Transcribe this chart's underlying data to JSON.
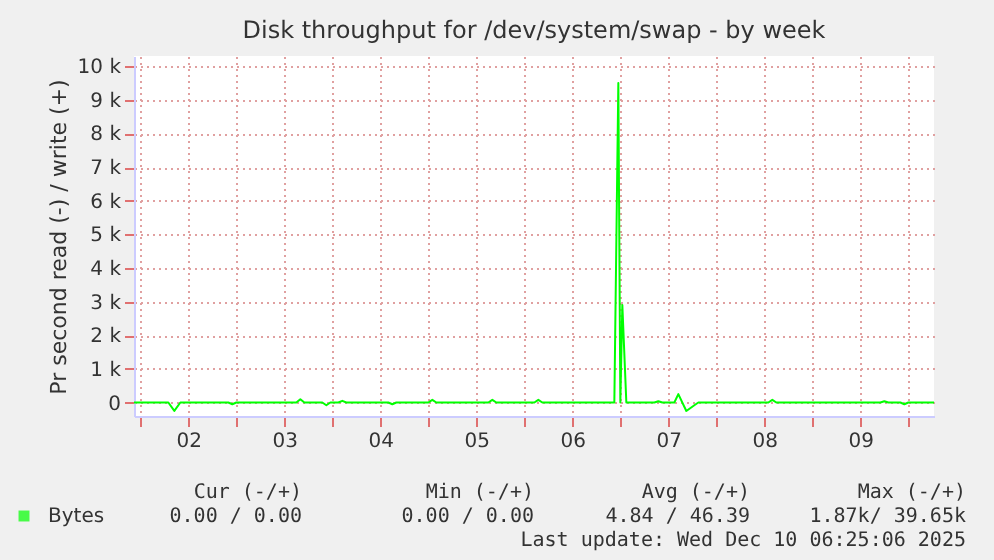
{
  "chart_data": {
    "type": "line",
    "title": "Disk throughput for /dev/system/swap - by week",
    "ylabel": "Pr second read (-) / write (+)",
    "x": [
      "2025-12-01T22:25",
      "2025-12-02T07:00",
      "2025-12-02T08:30",
      "2025-12-02T10:00",
      "2025-12-02T22:00",
      "2025-12-02T23:00",
      "2025-12-03T00:00",
      "2025-12-03T15:00",
      "2025-12-03T16:00",
      "2025-12-03T17:00",
      "2025-12-03T21:30",
      "2025-12-03T22:30",
      "2025-12-03T23:30",
      "2025-12-04T01:30",
      "2025-12-04T02:30",
      "2025-12-04T03:30",
      "2025-12-04T14:00",
      "2025-12-04T15:00",
      "2025-12-04T16:00",
      "2025-12-05T00:00",
      "2025-12-05T01:00",
      "2025-12-05T02:00",
      "2025-12-05T15:00",
      "2025-12-05T16:00",
      "2025-12-05T17:00",
      "2025-12-06T02:30",
      "2025-12-06T03:30",
      "2025-12-06T04:30",
      "2025-12-06T22:30",
      "2025-12-06T23:30",
      "2025-12-07T00:00",
      "2025-12-07T00:30",
      "2025-12-07T01:30",
      "2025-12-07T08:30",
      "2025-12-07T09:30",
      "2025-12-07T10:30",
      "2025-12-07T13:30",
      "2025-12-07T14:30",
      "2025-12-07T16:30",
      "2025-12-07T18:30",
      "2025-12-07T19:30",
      "2025-12-08T13:00",
      "2025-12-08T14:00",
      "2025-12-08T15:00",
      "2025-12-09T17:00",
      "2025-12-09T18:00",
      "2025-12-09T19:00",
      "2025-12-09T22:00",
      "2025-12-09T23:00",
      "2025-12-10T00:00",
      "2025-12-10T06:25"
    ],
    "series": [
      {
        "name": "Bytes",
        "color": "#00ff00",
        "values": [
          0,
          0,
          -250,
          0,
          0,
          -50,
          0,
          0,
          100,
          0,
          0,
          -80,
          0,
          0,
          50,
          0,
          0,
          -50,
          0,
          0,
          80,
          0,
          0,
          80,
          0,
          0,
          80,
          0,
          0,
          9500,
          0,
          2900,
          0,
          0,
          40,
          0,
          0,
          250,
          -250,
          -80,
          0,
          0,
          80,
          0,
          0,
          40,
          0,
          0,
          -50,
          0,
          0
        ]
      }
    ],
    "xlim": [
      "2025-12-01T22:25",
      "2025-12-10T06:25"
    ],
    "xticks": [
      {
        "value": "2025-12-02T00:00",
        "label": null
      },
      {
        "value": "2025-12-02T12:00",
        "label": "02"
      },
      {
        "value": "2025-12-03T00:00",
        "label": null
      },
      {
        "value": "2025-12-03T12:00",
        "label": "03"
      },
      {
        "value": "2025-12-04T00:00",
        "label": null
      },
      {
        "value": "2025-12-04T12:00",
        "label": "04"
      },
      {
        "value": "2025-12-05T00:00",
        "label": null
      },
      {
        "value": "2025-12-05T12:00",
        "label": "05"
      },
      {
        "value": "2025-12-06T00:00",
        "label": null
      },
      {
        "value": "2025-12-06T12:00",
        "label": "06"
      },
      {
        "value": "2025-12-07T00:00",
        "label": null
      },
      {
        "value": "2025-12-07T12:00",
        "label": "07"
      },
      {
        "value": "2025-12-08T00:00",
        "label": null
      },
      {
        "value": "2025-12-08T12:00",
        "label": "08"
      },
      {
        "value": "2025-12-09T00:00",
        "label": null
      },
      {
        "value": "2025-12-09T12:00",
        "label": "09"
      },
      {
        "value": "2025-12-10T00:00",
        "label": null
      }
    ],
    "ylim": [
      -400,
      10300
    ],
    "yticks": [
      0,
      {
        "value": 1000,
        "label": "1 k"
      },
      {
        "value": 2000,
        "label": "2 k"
      },
      {
        "value": 3000,
        "label": "3 k"
      },
      {
        "value": 4000,
        "label": "4 k"
      },
      {
        "value": 5000,
        "label": "5 k"
      },
      {
        "value": 6000,
        "label": "6 k"
      },
      {
        "value": 7000,
        "label": "7 k"
      },
      {
        "value": 8000,
        "label": "8 k"
      },
      {
        "value": 9000,
        "label": "9 k"
      },
      {
        "value": 10000,
        "label": "10 k"
      }
    ],
    "grid": true,
    "legend": "bottom left",
    "annotations": [
      "Cur (-/+)",
      "Min (-/+)",
      "Avg (-/+)",
      "Max (-/+)",
      "0.00 /  0.00",
      "0.00 /  0.00",
      "4.84 / 46.39",
      "1.87k/ 39.65k",
      "Last update: Wed Dec 10 06:25:06 2025"
    ]
  }
}
